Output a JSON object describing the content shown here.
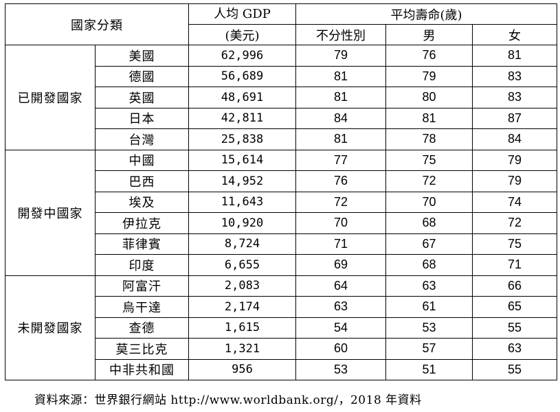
{
  "table": {
    "header": {
      "category": "國家分類",
      "gdp_line1": "人均 GDP",
      "gdp_line2": "(美元)",
      "life_group": "平均壽命(歲)",
      "life_all": "不分性別",
      "life_male": "男",
      "life_female": "女"
    },
    "groups": [
      {
        "name": "已開發國家",
        "rows": [
          {
            "country": "美國",
            "gdp": "62,996",
            "all": "79",
            "male": "76",
            "female": "81"
          },
          {
            "country": "德國",
            "gdp": "56,689",
            "all": "81",
            "male": "79",
            "female": "83"
          },
          {
            "country": "英國",
            "gdp": "48,691",
            "all": "81",
            "male": "80",
            "female": "83"
          },
          {
            "country": "日本",
            "gdp": "42,811",
            "all": "84",
            "male": "81",
            "female": "87"
          },
          {
            "country": "台灣",
            "gdp": "25,838",
            "all": "81",
            "male": "78",
            "female": "84"
          }
        ]
      },
      {
        "name": "開發中國家",
        "rows": [
          {
            "country": "中國",
            "gdp": "15,614",
            "all": "77",
            "male": "75",
            "female": "79"
          },
          {
            "country": "巴西",
            "gdp": "14,952",
            "all": "76",
            "male": "72",
            "female": "79"
          },
          {
            "country": "埃及",
            "gdp": "11,643",
            "all": "72",
            "male": "70",
            "female": "74"
          },
          {
            "country": "伊拉克",
            "gdp": "10,920",
            "all": "70",
            "male": "68",
            "female": "72"
          },
          {
            "country": "菲律賓",
            "gdp": "8,724",
            "all": "71",
            "male": "67",
            "female": "75"
          },
          {
            "country": "印度",
            "gdp": "6,655",
            "all": "69",
            "male": "68",
            "female": "71"
          }
        ]
      },
      {
        "name": "未開發國家",
        "rows": [
          {
            "country": "阿富汗",
            "gdp": "2,083",
            "all": "64",
            "male": "63",
            "female": "66"
          },
          {
            "country": "烏干達",
            "gdp": "2,174",
            "all": "63",
            "male": "61",
            "female": "65"
          },
          {
            "country": "查德",
            "gdp": "1,615",
            "all": "54",
            "male": "53",
            "female": "55"
          },
          {
            "country": "莫三比克",
            "gdp": "1,321",
            "all": "60",
            "male": "57",
            "female": "63"
          },
          {
            "country": "中非共和國",
            "gdp": "956",
            "all": "53",
            "male": "51",
            "female": "55"
          }
        ]
      }
    ]
  },
  "source": "資料來源：世界銀行網站 http://www.worldbank.org/，2018 年資料"
}
